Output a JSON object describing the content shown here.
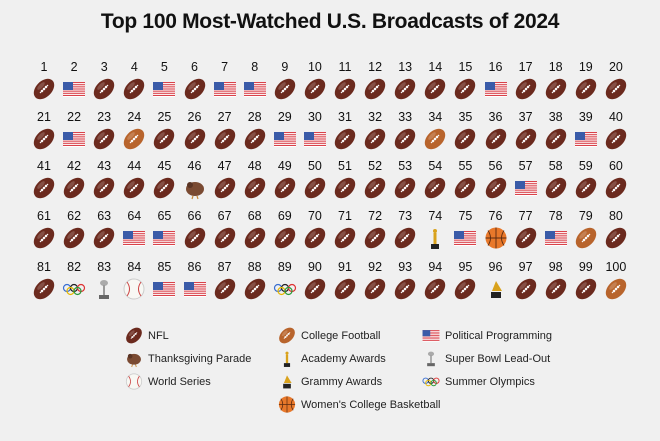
{
  "title": "Top 100 Most-Watched U.S. Broadcasts of 2024",
  "chart_data": {
    "type": "table",
    "title": "Top 100 Most-Watched U.S. Broadcasts of 2024",
    "categories": {
      "N": "NFL",
      "C": "College Football",
      "P": "Political Programming",
      "T": "Thanksgiving Parade",
      "A": "Academy Awards",
      "S": "Super Bowl Lead-Out",
      "B": "World Series",
      "G": "Grammy Awards",
      "O": "Summer Olympics",
      "W": "Women's College Basketball"
    },
    "ranks_by_category": [
      "N",
      "P",
      "N",
      "N",
      "P",
      "N",
      "P",
      "P",
      "N",
      "N",
      "N",
      "N",
      "N",
      "N",
      "N",
      "P",
      "N",
      "N",
      "N",
      "N",
      "N",
      "P",
      "N",
      "C",
      "N",
      "N",
      "N",
      "N",
      "P",
      "P",
      "N",
      "N",
      "N",
      "C",
      "N",
      "N",
      "N",
      "N",
      "P",
      "N",
      "N",
      "N",
      "N",
      "N",
      "N",
      "T",
      "N",
      "N",
      "N",
      "N",
      "N",
      "N",
      "N",
      "N",
      "N",
      "N",
      "P",
      "N",
      "N",
      "N",
      "N",
      "N",
      "N",
      "P",
      "P",
      "N",
      "N",
      "N",
      "N",
      "N",
      "N",
      "N",
      "N",
      "A",
      "P",
      "W",
      "N",
      "P",
      "C",
      "N",
      "N",
      "O",
      "S",
      "B",
      "P",
      "P",
      "N",
      "N",
      "O",
      "N",
      "N",
      "N",
      "N",
      "N",
      "N",
      "G",
      "N",
      "N",
      "N",
      "C"
    ]
  },
  "legend": [
    {
      "code": "N",
      "label": "NFL"
    },
    {
      "code": "T",
      "label": "Thanksgiving Parade"
    },
    {
      "code": "B",
      "label": "World Series"
    },
    {
      "code": "C",
      "label": "College Football"
    },
    {
      "code": "A",
      "label": "Academy Awards"
    },
    {
      "code": "G",
      "label": "Grammy Awards"
    },
    {
      "code": "W",
      "label": "Women's College Basketball"
    },
    {
      "code": "P",
      "label": "Political Programming"
    },
    {
      "code": "S",
      "label": "Super Bowl Lead-Out"
    },
    {
      "code": "O",
      "label": "Summer Olympics"
    }
  ],
  "colors": {
    "nfl": "#6b2a1e",
    "college_football": "#b8642c",
    "basketball": "#e8782a",
    "flag_red": "#d9424a",
    "flag_blue": "#3a5ba8",
    "gold": "#d9a21c"
  }
}
